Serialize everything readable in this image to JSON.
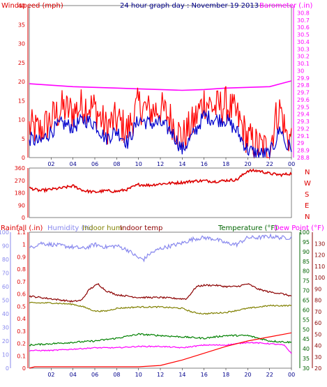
{
  "chart_data": {
    "type": "line",
    "title": "24 hour graph day : November 19 2013",
    "x_tick_labels": [
      "02",
      "04",
      "06",
      "08",
      "10",
      "12",
      "14",
      "16",
      "18",
      "20",
      "22",
      "00"
    ],
    "colors": {
      "windspeed": "#ff0000",
      "windspeed_avg": "#0000cc",
      "barometer": "#ff00ff",
      "direction": "#dd0000",
      "humidity": "#8888ee",
      "indoor_hum": "#808000",
      "indoor_temp": "#8b0000",
      "temperature": "#008000",
      "dew_point": "#ff00ff",
      "rain": "#ff0000",
      "axis_wind": "#dd0000",
      "axis_baro": "#ff00ff",
      "axis_hum": "#8888ee",
      "axis_rain": "#dd0000",
      "axis_temp_left": "#006400",
      "axis_temp_right": "#8b0000"
    },
    "panels": [
      {
        "name": "wind-baro",
        "left_label": "Windspeed (mph)",
        "right_label": "Barometer (.in)",
        "left_range": [
          0,
          40
        ],
        "left_ticks": [
          "0",
          "5",
          "10",
          "15",
          "20",
          "25",
          "30",
          "35",
          "40"
        ],
        "right_range": [
          28.8,
          30.9
        ],
        "right_ticks": [
          "28.8",
          "28.9",
          "29",
          "29.1",
          "29.2",
          "29.3",
          "29.4",
          "29.5",
          "29.6",
          "29.7",
          "29.8",
          "29.9",
          "30",
          "30.1",
          "30.2",
          "30.3",
          "30.4",
          "30.5",
          "30.6",
          "30.7",
          "30.8"
        ],
        "series": [
          {
            "key": "barometer",
            "axis": "right",
            "x": [
              0,
              2,
              4,
              6,
              8,
              10,
              12,
              14,
              16,
              18,
              20,
              22,
              23,
              24
            ],
            "values": [
              29.82,
              29.8,
              29.78,
              29.77,
              29.76,
              29.75,
              29.74,
              29.73,
              29.74,
              29.76,
              29.77,
              29.78,
              29.82,
              29.86
            ]
          },
          {
            "key": "windspeed",
            "axis": "left",
            "noisy": true,
            "x": [
              0,
              1,
              2,
              3,
              4,
              5,
              6,
              7,
              8,
              9,
              10,
              11,
              12,
              13,
              14,
              15,
              16,
              17,
              18,
              19,
              20,
              21,
              22,
              22.5,
              23,
              23.5,
              24
            ],
            "values": [
              8,
              7,
              10,
              13,
              12,
              14,
              13,
              8,
              10,
              7,
              14,
              12,
              13,
              10,
              5,
              9,
              15,
              13,
              14,
              11,
              5,
              3,
              2,
              10,
              13,
              6,
              5
            ],
            "amplitude": 5
          },
          {
            "key": "windspeed_avg",
            "axis": "left",
            "noisy": true,
            "x": [
              0,
              1,
              2,
              3,
              4,
              5,
              6,
              7,
              8,
              9,
              10,
              11,
              12,
              13,
              14,
              15,
              16,
              17,
              18,
              19,
              20,
              21,
              22,
              22.5,
              23,
              23.5,
              24
            ],
            "values": [
              5,
              4,
              7,
              9,
              8,
              10,
              9,
              5,
              7,
              4,
              10,
              9,
              9,
              7,
              2,
              6,
              11,
              10,
              10,
              7,
              2,
              1,
              1,
              4,
              8,
              3,
              3
            ],
            "amplitude": 2
          }
        ]
      },
      {
        "name": "direction",
        "left_range": [
          0,
          360
        ],
        "left_ticks": [
          "0",
          "90",
          "180",
          "270",
          "360"
        ],
        "compass": [
          "N",
          "W",
          "S",
          "E",
          "N"
        ],
        "series": [
          {
            "key": "direction",
            "axis": "left",
            "noisy": true,
            "x": [
              0,
              1,
              2,
              3,
              4,
              5,
              6,
              7,
              8,
              9,
              10,
              11,
              12,
              13,
              14,
              15,
              16,
              17,
              18,
              19,
              20,
              21,
              22,
              23,
              24
            ],
            "values": [
              215,
              195,
              205,
              215,
              230,
              195,
              185,
              195,
              190,
              205,
              240,
              235,
              245,
              250,
              255,
              265,
              268,
              262,
              270,
              275,
              340,
              340,
              320,
              310,
              320
            ],
            "amplitude": 10
          }
        ]
      },
      {
        "name": "rain-temp",
        "labels": {
          "rain": "Rainfall (.in)",
          "humidity": "Humidity (%)",
          "indoor_hum": "Indoor hum",
          "indoor_temp": "Indoor temp",
          "temperature": "Temperature (°F)",
          "dew_point": "Dew Point (°F)"
        },
        "hum_range": [
          0,
          100
        ],
        "hum_ticks": [
          "0",
          "10",
          "20",
          "30",
          "40",
          "50",
          "60",
          "70",
          "80",
          "90",
          "100"
        ],
        "rain_range": [
          0,
          1.1
        ],
        "rain_ticks": [
          "0",
          "0.1",
          "0.2",
          "0.3",
          "0.4",
          "0.5",
          "0.6",
          "0.7",
          "0.8",
          "0.9",
          "1",
          "1.1"
        ],
        "temp_left_range": [
          30,
          100
        ],
        "temp_left_ticks": [
          "30",
          "35",
          "40",
          "45",
          "50",
          "55",
          "60",
          "65",
          "70",
          "75",
          "80",
          "85",
          "90",
          "95",
          "100"
        ],
        "temp_right_range": [
          20,
          140
        ],
        "temp_right_ticks": [
          "20",
          "30",
          "40",
          "50",
          "60",
          "70",
          "80",
          "90",
          "100",
          "110",
          "120",
          "130"
        ],
        "series": [
          {
            "key": "humidity",
            "axis": "hum",
            "noisy": true,
            "x": [
              0,
              1,
              2,
              3,
              4,
              5,
              6,
              7,
              8,
              9,
              10,
              10.5,
              11,
              12,
              13,
              14,
              15,
              16,
              17,
              18,
              19,
              20,
              21,
              22,
              23,
              24
            ],
            "values": [
              88,
              92,
              91,
              90,
              89,
              88,
              91,
              89,
              90,
              87,
              81,
              80,
              84,
              88,
              90,
              92,
              95,
              96,
              95,
              92,
              91,
              96,
              96,
              97,
              96,
              96
            ],
            "amplitude": 1.5
          },
          {
            "key": "indoor_temp",
            "axis": "hum",
            "x": [
              0,
              2,
              4,
              4.8,
              5.5,
              6.3,
              7,
              8,
              10,
              12,
              14,
              14.4,
              15.3,
              16,
              17,
              18,
              19,
              20,
              21,
              22,
              23,
              24
            ],
            "values": [
              53,
              51,
              49,
              50,
              58,
              62,
              57,
              54,
              52,
              52,
              51,
              51,
              60,
              61,
              61,
              60,
              60,
              62,
              58,
              56,
              55,
              53
            ],
            "noisy": true,
            "amplitude": 0.6
          },
          {
            "key": "indoor_hum",
            "axis": "hum",
            "x": [
              0,
              2,
              4,
              5,
              6,
              7,
              8,
              10,
              12,
              14,
              15,
              16,
              18,
              20,
              22,
              24
            ],
            "values": [
              48,
              48,
              47,
              45,
              42,
              42,
              44,
              45,
              45,
              44,
              41,
              40,
              41,
              44,
              46,
              46
            ],
            "noisy": true,
            "amplitude": 0.5
          },
          {
            "key": "temperature",
            "axis": "hum",
            "noisy": true,
            "x": [
              0,
              2,
              4,
              6,
              8,
              10,
              12,
              14,
              16,
              18,
              20,
              22,
              24
            ],
            "values": [
              17,
              18,
              19,
              20,
              22,
              25,
              24,
              23,
              22,
              24,
              24,
              20,
              19
            ],
            "amplitude": 0.6
          },
          {
            "key": "dew_point",
            "axis": "hum",
            "noisy": true,
            "x": [
              0,
              2,
              4,
              6,
              8,
              10,
              12,
              14,
              16,
              18,
              20,
              22,
              23.3,
              24
            ],
            "values": [
              13,
              13,
              14,
              15,
              15,
              16,
              16,
              15,
              17,
              17,
              19,
              18,
              17,
              11
            ],
            "amplitude": 0.4
          },
          {
            "key": "rain",
            "axis": "hum",
            "x": [
              0,
              0.5,
              10,
              12,
              14,
              16,
              18,
              20,
              22,
              24
            ],
            "values": [
              0,
              1,
              1,
              2,
              6,
              11,
              16,
              20,
              23,
              26
            ]
          }
        ]
      }
    ]
  }
}
